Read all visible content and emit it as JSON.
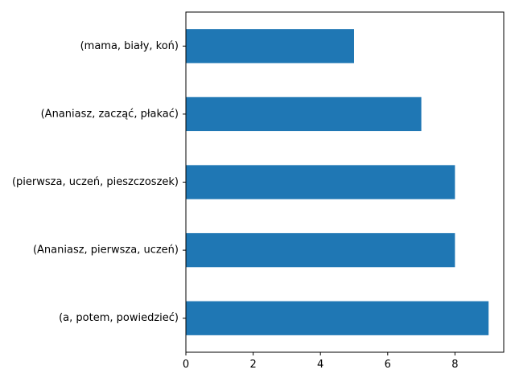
{
  "chart_data": {
    "type": "bar",
    "orientation": "horizontal",
    "categories": [
      "(a, potem, powiedzieć)",
      "(Ananiasz, pierwsza, uczeń)",
      "(pierwsza, uczeń, pieszczoszek)",
      "(Ananiasz, zacząć, płakać)",
      "(mama, biały, koń)"
    ],
    "values": [
      9,
      8,
      8,
      7,
      5
    ],
    "xlim": [
      0,
      9.45
    ],
    "xticks": [
      0,
      2,
      4,
      6,
      8
    ],
    "title": "",
    "xlabel": "",
    "ylabel": "",
    "grid": false,
    "bar_color": "#1f77b4"
  }
}
